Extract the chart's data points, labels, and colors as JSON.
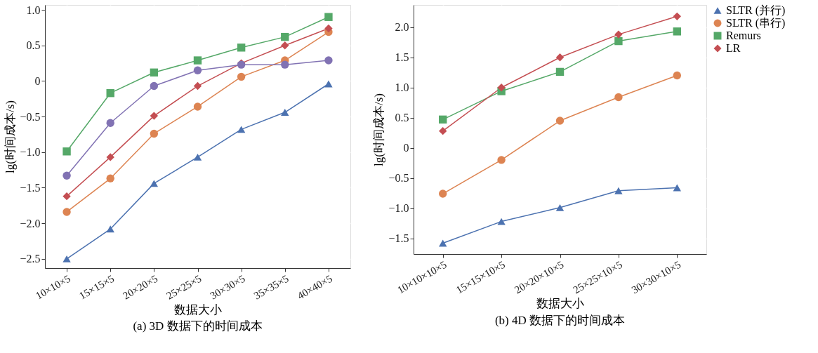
{
  "chart_data": [
    {
      "type": "line",
      "title": "(a) 3D 数据下的时间成本",
      "xlabel": "数据大小",
      "ylabel": "lg(时间成本/s)",
      "categories": [
        "10×10×5",
        "15×15×5",
        "20×20×5",
        "25×25×5",
        "30×30×5",
        "35×35×5",
        "40×40×5"
      ],
      "series": [
        {
          "color": "#4c72b0",
          "marker": "triangle",
          "values": [
            -2.5,
            -2.08,
            -1.44,
            -1.07,
            -0.68,
            -0.44,
            -0.04
          ]
        },
        {
          "color": "#dd8452",
          "marker": "circle",
          "values": [
            -1.84,
            -1.37,
            -0.74,
            -0.36,
            0.06,
            0.29,
            0.69
          ]
        },
        {
          "color": "#55a868",
          "marker": "square",
          "values": [
            -0.99,
            -0.17,
            0.12,
            0.29,
            0.47,
            0.62,
            0.9
          ]
        },
        {
          "color": "#c44e52",
          "marker": "diamond",
          "values": [
            -1.62,
            -1.07,
            -0.49,
            -0.07,
            0.25,
            0.5,
            0.74
          ]
        },
        {
          "color": "#8172b3",
          "marker": "circle",
          "values": [
            -1.33,
            -0.59,
            -0.07,
            0.15,
            0.23,
            0.23,
            0.29
          ]
        }
      ],
      "ylim": [
        -2.63,
        1.07
      ],
      "yticks": [
        {
          "value": -2.5,
          "label": "−2.5"
        },
        {
          "value": -2.0,
          "label": "−2.0"
        },
        {
          "value": -1.5,
          "label": "−1.5"
        },
        {
          "value": -1.0,
          "label": "−1.0"
        },
        {
          "value": -0.5,
          "label": "−0.5"
        },
        0,
        {
          "value": 0.5,
          "label": "0.5"
        },
        {
          "value": 1.0,
          "label": "1.0"
        }
      ],
      "grid": true,
      "legend": false,
      "line_style": "solid"
    },
    {
      "type": "line",
      "title": "(b) 4D 数据下的时间成本",
      "xlabel": "数据大小",
      "ylabel": "lg(时间成本/s)",
      "categories": [
        "10×10×10×5",
        "15×15×10×5",
        "20×20×10×5",
        "25×25×10×5",
        "30×30×10×5"
      ],
      "series": [
        {
          "name": "SLTR (并行)",
          "color": "#4c72b0",
          "marker": "triangle",
          "values": [
            -1.58,
            -1.22,
            -0.99,
            -0.71,
            -0.66
          ]
        },
        {
          "name": "SLTR (串行)",
          "color": "#dd8452",
          "marker": "circle",
          "values": [
            -0.76,
            -0.2,
            0.45,
            0.84,
            1.2
          ]
        },
        {
          "name": "Remurs",
          "color": "#55a868",
          "marker": "square",
          "values": [
            0.47,
            0.94,
            1.26,
            1.77,
            1.93
          ]
        },
        {
          "name": "LR",
          "color": "#c44e52",
          "marker": "diamond",
          "values": [
            0.28,
            1.0,
            1.5,
            1.88,
            2.18
          ]
        }
      ],
      "ylim": [
        -1.76,
        2.37
      ],
      "yticks": [
        {
          "value": -1.5,
          "label": "−1.5"
        },
        {
          "value": -1.0,
          "label": "−1.0"
        },
        {
          "value": -0.5,
          "label": "−0.5"
        },
        0,
        {
          "value": 0.5,
          "label": "0.5"
        },
        {
          "value": 1.0,
          "label": "1.0"
        },
        {
          "value": 1.5,
          "label": "1.5"
        },
        {
          "value": 2.0,
          "label": "2.0"
        }
      ],
      "grid": true,
      "legend": "right",
      "line_style": "solid"
    }
  ]
}
